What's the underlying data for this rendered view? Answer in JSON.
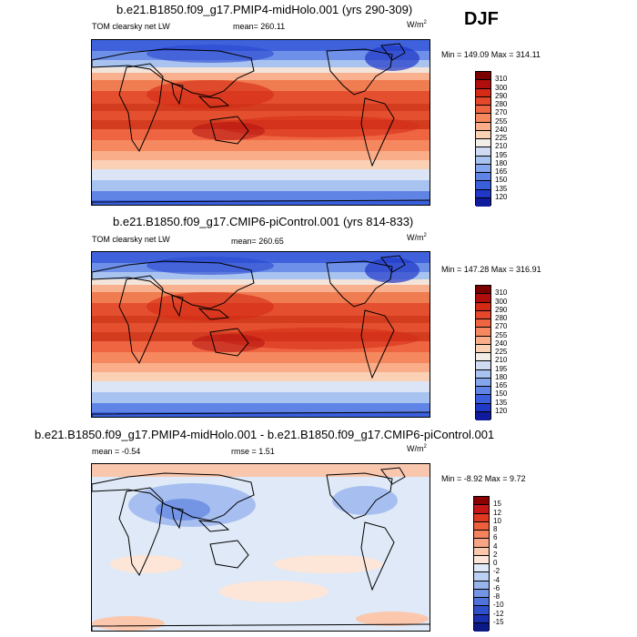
{
  "season": "DJF",
  "panels": [
    {
      "title": "b.e21.B1850.f09_g17.PMIP4-midHolo.001 (yrs 290-309)",
      "left_label": "TOM clearsky net LW",
      "center_label": "mean= 260.11",
      "units": "W/m",
      "units_sup": "2",
      "minmax": "Min = 149.09 Max = 314.11",
      "colorbar_labels": [
        "310",
        "300",
        "290",
        "280",
        "270",
        "255",
        "240",
        "225",
        "210",
        "195",
        "180",
        "165",
        "150",
        "135",
        "120"
      ],
      "colorbar_colors": [
        "#7a0000",
        "#b00d0d",
        "#d42a16",
        "#e5472a",
        "#ef6441",
        "#f5885f",
        "#f9ad88",
        "#fbd1b6",
        "#f3ede7",
        "#cfdbf2",
        "#a9c3f0",
        "#85a6ec",
        "#5f84e6",
        "#3a5fdc",
        "#2038c8",
        "#101a9c"
      ]
    },
    {
      "title": "b.e21.B1850.f09_g17.CMIP6-piControl.001 (yrs 814-833)",
      "left_label": "TOM clearsky net LW",
      "center_label": "mean= 260.65",
      "units": "W/m",
      "units_sup": "2",
      "minmax": "Min = 147.28 Max = 316.91",
      "colorbar_labels": [
        "310",
        "300",
        "290",
        "280",
        "270",
        "255",
        "240",
        "225",
        "210",
        "195",
        "180",
        "165",
        "150",
        "135",
        "120"
      ],
      "colorbar_colors": [
        "#7a0000",
        "#b00d0d",
        "#d42a16",
        "#e5472a",
        "#ef6441",
        "#f5885f",
        "#f9ad88",
        "#fbd1b6",
        "#f3ede7",
        "#cfdbf2",
        "#a9c3f0",
        "#85a6ec",
        "#5f84e6",
        "#3a5fdc",
        "#2038c8",
        "#101a9c"
      ]
    },
    {
      "title": "b.e21.B1850.f09_g17.PMIP4-midHolo.001 - b.e21.B1850.f09_g17.CMIP6-piControl.001",
      "left_label": "mean =  -0.54",
      "center_label": "rmse =   1.51",
      "units": "W/m",
      "units_sup": "2",
      "minmax": "Min =  -8.92 Max =   9.72",
      "colorbar_labels": [
        "15",
        "12",
        "10",
        "8",
        "6",
        "4",
        "2",
        "0",
        "-2",
        "-4",
        "-6",
        "-8",
        "-10",
        "-12",
        "-15"
      ],
      "colorbar_colors": [
        "#8a0000",
        "#c41818",
        "#e03b22",
        "#ee5f3c",
        "#f4835e",
        "#f8a585",
        "#fbc8ae",
        "#fde6d8",
        "#dfe9f7",
        "#bcd0f2",
        "#98b4ec",
        "#7395e4",
        "#4f73da",
        "#2f4fcb",
        "#1a2fb0",
        "#0c1a85"
      ]
    }
  ],
  "chart_data": [
    {
      "type": "heatmap",
      "title": "b.e21.B1850.f09_g17.PMIP4-midHolo.001 (yrs 290-309)",
      "variable": "TOM clearsky net LW",
      "season": "DJF",
      "mean": 260.11,
      "min": 149.09,
      "max": 314.11,
      "units": "W/m2",
      "contour_levels": [
        120,
        135,
        150,
        165,
        180,
        195,
        210,
        225,
        240,
        255,
        270,
        280,
        290,
        300,
        310
      ]
    },
    {
      "type": "heatmap",
      "title": "b.e21.B1850.f09_g17.CMIP6-piControl.001 (yrs 814-833)",
      "variable": "TOM clearsky net LW",
      "season": "DJF",
      "mean": 260.65,
      "min": 147.28,
      "max": 316.91,
      "units": "W/m2",
      "contour_levels": [
        120,
        135,
        150,
        165,
        180,
        195,
        210,
        225,
        240,
        255,
        270,
        280,
        290,
        300,
        310
      ]
    },
    {
      "type": "heatmap",
      "title": "b.e21.B1850.f09_g17.PMIP4-midHolo.001 - b.e21.B1850.f09_g17.CMIP6-piControl.001",
      "season": "DJF",
      "mean": -0.54,
      "rmse": 1.51,
      "min": -8.92,
      "max": 9.72,
      "units": "W/m2",
      "contour_levels": [
        -15,
        -12,
        -10,
        -8,
        -6,
        -4,
        -2,
        0,
        2,
        4,
        6,
        8,
        10,
        12,
        15
      ]
    }
  ]
}
